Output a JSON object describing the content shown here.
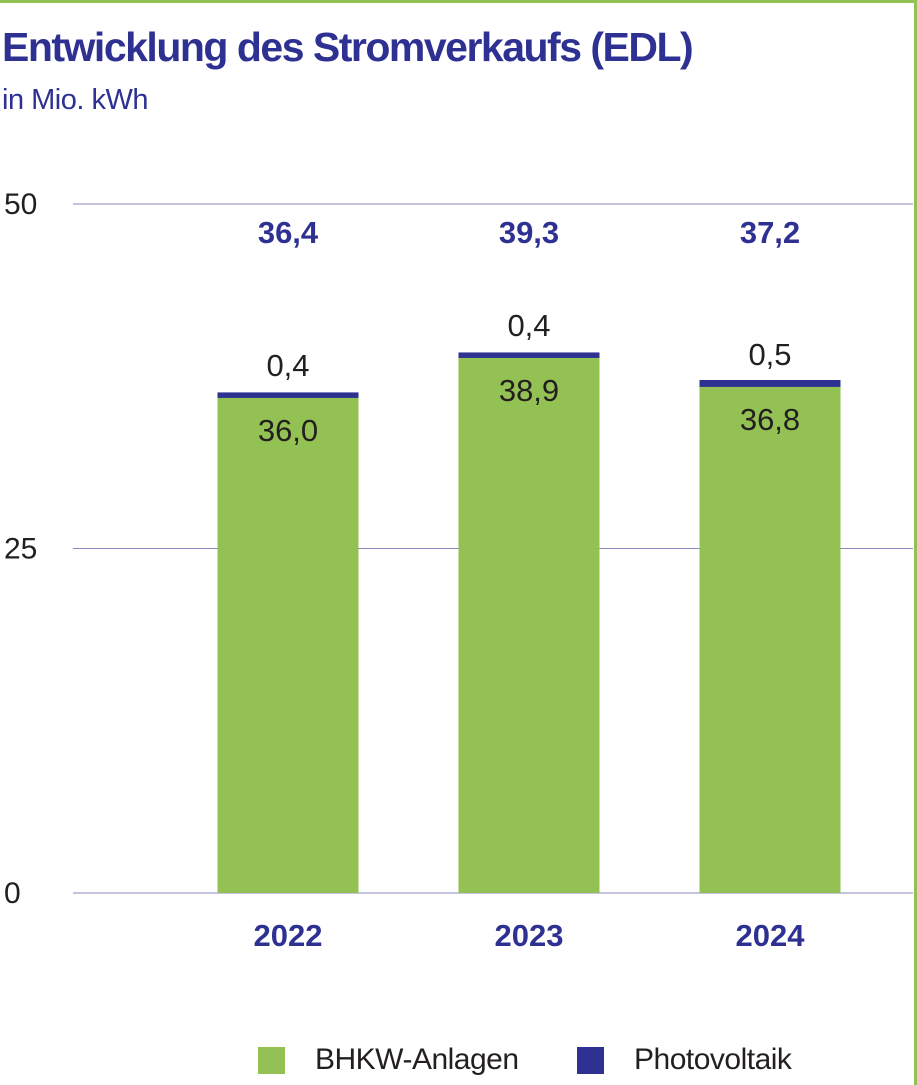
{
  "title": "Entwicklung des Stromverkaufs (EDL)",
  "subtitle": "in Mio. kWh",
  "colors": {
    "accent": "#2e3192",
    "bhkw": "#94c153",
    "photovoltaik": "#2e3192",
    "frame": "#94c153",
    "grid": "#8a8ac0"
  },
  "chart_data": {
    "type": "bar",
    "stacked": true,
    "categories": [
      "2022",
      "2023",
      "2024"
    ],
    "series": [
      {
        "name": "BHKW-Anlagen",
        "values": [
          36.0,
          38.9,
          36.8
        ],
        "labels": [
          "36,0",
          "38,9",
          "36,8"
        ]
      },
      {
        "name": "Photovoltaik",
        "values": [
          0.4,
          0.4,
          0.5
        ],
        "labels": [
          "0,4",
          "0,4",
          "0,5"
        ]
      }
    ],
    "totals": [
      "36,4",
      "39,3",
      "37,2"
    ],
    "yticks": [
      0,
      25,
      50
    ],
    "ylim": [
      0,
      50
    ],
    "grid": true,
    "legend": "bottom"
  }
}
